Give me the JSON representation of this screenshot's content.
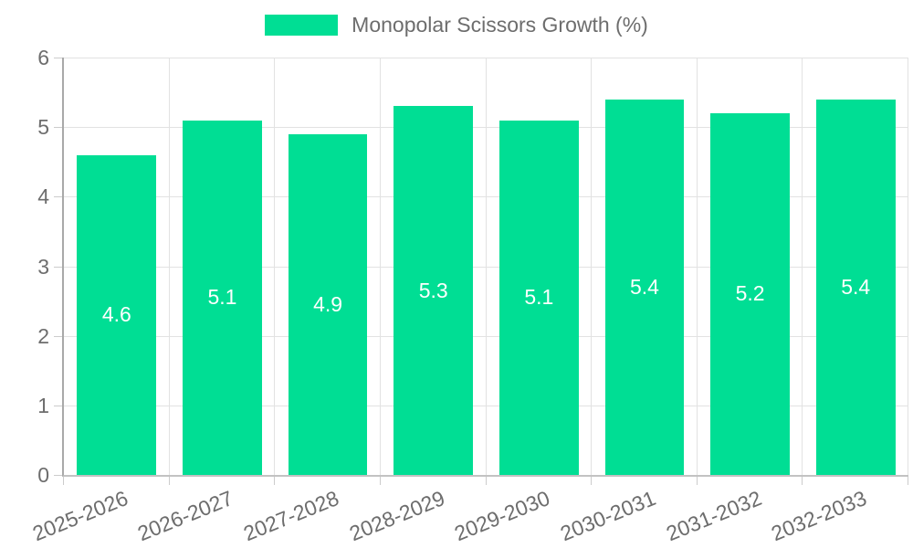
{
  "legend": {
    "label": "Monopolar Scissors Growth (%)"
  },
  "colors": {
    "bar": "#00DE94",
    "axis_text": "#6d6d6d",
    "grid_line": "#e2e2e2",
    "axis_line": "#a9a9a9",
    "value_label": "#ffffff"
  },
  "chart_data": {
    "type": "bar",
    "title": "Monopolar Scissors Growth (%)",
    "categories": [
      "2025-2026",
      "2026-2027",
      "2027-2028",
      "2028-2029",
      "2029-2030",
      "2030-2031",
      "2031-2032",
      "2032-2033"
    ],
    "values": [
      4.6,
      5.1,
      4.9,
      5.3,
      5.1,
      5.4,
      5.2,
      5.4
    ],
    "value_labels": [
      "4.6",
      "5.1",
      "4.9",
      "5.3",
      "5.1",
      "5.4",
      "5.2",
      "5.4"
    ],
    "xlabel": "",
    "ylabel": "",
    "ylim": [
      0,
      6
    ],
    "yticks": [
      0,
      1,
      2,
      3,
      4,
      5,
      6
    ],
    "grid": true,
    "legend_position": "top",
    "bar_label_position": "center",
    "x_label_rotation_deg": -22
  }
}
